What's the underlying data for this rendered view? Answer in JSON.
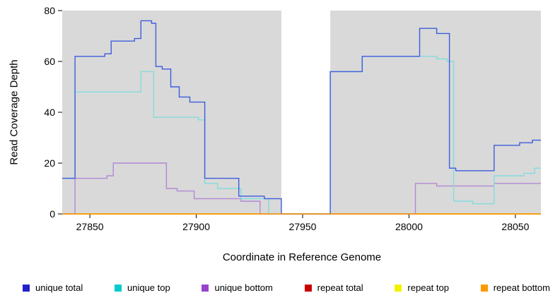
{
  "chart_data": {
    "type": "line",
    "step_style": "hv",
    "title": "",
    "xlabel": "Coordinate in Reference Genome",
    "ylabel": "Read Coverage Depth",
    "xlim": [
      27837,
      28062
    ],
    "ylim": [
      0,
      80
    ],
    "x_ticks": [
      27850,
      27900,
      27950,
      28000,
      28050
    ],
    "y_ticks": [
      0,
      20,
      40,
      60,
      80
    ],
    "grid": false,
    "legend_position": "bottom",
    "plot_background": "#d9d9d9",
    "gap_region": {
      "x0": 27940,
      "x1": 27963,
      "color": "#ffffff"
    },
    "series": [
      {
        "name": "repeat total",
        "line_color": "#cc0000",
        "points": [
          [
            27837,
            0
          ]
        ]
      },
      {
        "name": "repeat top",
        "line_color": "#f2f200",
        "points": [
          [
            27837,
            0
          ]
        ]
      },
      {
        "name": "unique bottom",
        "line_color": "#b289d6",
        "points": [
          [
            27837,
            0
          ],
          [
            27843,
            14
          ],
          [
            27858,
            15
          ],
          [
            27861,
            20
          ],
          [
            27886,
            10
          ],
          [
            27891,
            9
          ],
          [
            27899,
            6
          ],
          [
            27921,
            5
          ],
          [
            27930,
            0
          ],
          [
            28003,
            12
          ],
          [
            28013,
            11
          ],
          [
            28040,
            12
          ]
        ]
      },
      {
        "name": "unique top",
        "line_color": "#82dcdc",
        "points": [
          [
            27837,
            14
          ],
          [
            27843,
            48
          ],
          [
            27874,
            56
          ],
          [
            27880,
            38
          ],
          [
            27901,
            37
          ],
          [
            27904,
            12
          ],
          [
            27910,
            10
          ],
          [
            27921,
            6
          ],
          [
            27934,
            0
          ],
          [
            27963,
            56
          ],
          [
            27978,
            62
          ],
          [
            28013,
            61
          ],
          [
            28018,
            60
          ],
          [
            28021,
            5
          ],
          [
            28030,
            4
          ],
          [
            28040,
            15
          ],
          [
            28054,
            16
          ],
          [
            28059,
            18
          ]
        ]
      },
      {
        "name": "unique total",
        "line_color": "#3c5ddb",
        "points": [
          [
            27837,
            14
          ],
          [
            27843,
            62
          ],
          [
            27857,
            63
          ],
          [
            27860,
            68
          ],
          [
            27871,
            69
          ],
          [
            27874,
            76
          ],
          [
            27879,
            75
          ],
          [
            27881,
            58
          ],
          [
            27884,
            57
          ],
          [
            27888,
            50
          ],
          [
            27892,
            46
          ],
          [
            27897,
            44
          ],
          [
            27904,
            14
          ],
          [
            27920,
            7
          ],
          [
            27932,
            6
          ],
          [
            27940,
            0
          ],
          [
            27963,
            56
          ],
          [
            27978,
            62
          ],
          [
            28005,
            73
          ],
          [
            28013,
            71
          ],
          [
            28019,
            18
          ],
          [
            28022,
            17
          ],
          [
            28040,
            27
          ],
          [
            28052,
            28
          ],
          [
            28058,
            29
          ]
        ]
      },
      {
        "name": "repeat bottom",
        "line_color": "#ff9900",
        "points": [
          [
            27837,
            0
          ]
        ]
      }
    ]
  },
  "legend": {
    "items": [
      {
        "label": "unique total",
        "color": "#2222cc"
      },
      {
        "label": "unique top",
        "color": "#00cccc"
      },
      {
        "label": "unique bottom",
        "color": "#9944cc"
      },
      {
        "label": "repeat total",
        "color": "#cc0000"
      },
      {
        "label": "repeat top",
        "color": "#f2f200"
      },
      {
        "label": "repeat bottom",
        "color": "#ff9900"
      }
    ]
  }
}
